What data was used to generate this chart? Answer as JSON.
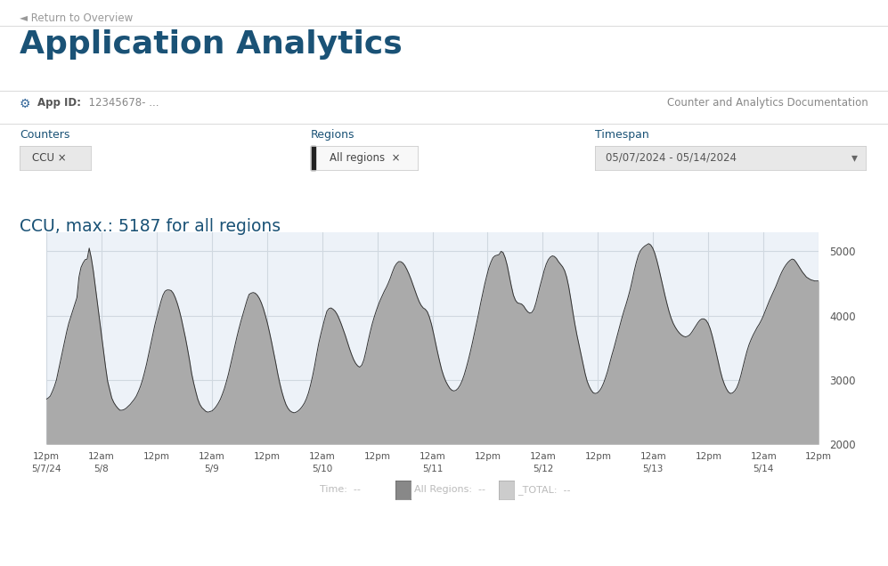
{
  "page_title": "Application Analytics",
  "return_link": "◄ Return to Overview",
  "app_id_label": "App ID:",
  "app_id_value": "  12345678- ...",
  "doc_link": "Counter and Analytics Documentation",
  "counters_label": "Counters",
  "regions_label": "Regions",
  "timespan_label": "Timespan",
  "counter_tag": "CCU ×",
  "region_tag": "All regions  ×",
  "timespan_value": "05/07/2024 - 05/14/2024",
  "chart_title": "CCU, max.: 5187 for all regions",
  "title_color": "#1a5276",
  "page_bg": "#ffffff",
  "chart_bg": "#edf2f8",
  "fill_color": "#aaaaaa",
  "fill_edge_color": "#888888",
  "grid_color": "#d0d8e0",
  "ylim": [
    2000,
    5300
  ],
  "yticks": [
    2000,
    3000,
    4000,
    5000
  ],
  "x_tick_labels": [
    "12pm\n5/7/24",
    "12am\n5/8",
    "12pm",
    "12am\n5/9",
    "12pm",
    "12am\n5/10",
    "12pm",
    "12am\n5/11",
    "12pm",
    "12am\n5/12",
    "12pm",
    "12am\n5/13",
    "12pm",
    "12am\n5/14",
    "12pm"
  ],
  "y_series": [
    2700,
    2720,
    2750,
    2820,
    2900,
    3000,
    3150,
    3300,
    3450,
    3600,
    3750,
    3880,
    3980,
    4080,
    4180,
    4280,
    4600,
    4750,
    4820,
    4870,
    4880,
    5050,
    4900,
    4700,
    4450,
    4200,
    3950,
    3700,
    3450,
    3200,
    2980,
    2850,
    2720,
    2650,
    2600,
    2560,
    2530,
    2530,
    2540,
    2560,
    2590,
    2620,
    2660,
    2700,
    2750,
    2820,
    2900,
    3000,
    3120,
    3250,
    3400,
    3550,
    3700,
    3850,
    3980,
    4100,
    4220,
    4320,
    4380,
    4400,
    4400,
    4390,
    4350,
    4280,
    4190,
    4080,
    3950,
    3800,
    3650,
    3480,
    3300,
    3100,
    2950,
    2820,
    2700,
    2620,
    2570,
    2540,
    2510,
    2500,
    2510,
    2520,
    2550,
    2590,
    2640,
    2700,
    2780,
    2870,
    2980,
    3100,
    3240,
    3380,
    3520,
    3660,
    3790,
    3910,
    4020,
    4130,
    4240,
    4330,
    4350,
    4360,
    4350,
    4320,
    4270,
    4200,
    4110,
    4000,
    3880,
    3740,
    3590,
    3430,
    3270,
    3100,
    2950,
    2820,
    2710,
    2620,
    2560,
    2520,
    2500,
    2490,
    2500,
    2520,
    2550,
    2590,
    2640,
    2710,
    2800,
    2920,
    3060,
    3220,
    3400,
    3570,
    3710,
    3840,
    3960,
    4070,
    4110,
    4120,
    4100,
    4070,
    4020,
    3950,
    3870,
    3780,
    3690,
    3590,
    3490,
    3400,
    3320,
    3260,
    3220,
    3200,
    3230,
    3310,
    3440,
    3590,
    3730,
    3860,
    3970,
    4070,
    4160,
    4240,
    4310,
    4380,
    4440,
    4510,
    4590,
    4680,
    4760,
    4810,
    4840,
    4840,
    4820,
    4780,
    4720,
    4650,
    4570,
    4480,
    4390,
    4300,
    4220,
    4160,
    4120,
    4100,
    4060,
    3980,
    3870,
    3730,
    3580,
    3430,
    3290,
    3160,
    3060,
    2980,
    2920,
    2870,
    2840,
    2830,
    2840,
    2870,
    2920,
    2990,
    3080,
    3190,
    3310,
    3440,
    3580,
    3730,
    3880,
    4030,
    4190,
    4340,
    4490,
    4620,
    4740,
    4830,
    4900,
    4930,
    4940,
    4950,
    5000,
    4980,
    4900,
    4780,
    4620,
    4460,
    4320,
    4240,
    4200,
    4190,
    4180,
    4150,
    4100,
    4060,
    4040,
    4050,
    4100,
    4200,
    4330,
    4460,
    4580,
    4700,
    4800,
    4870,
    4910,
    4930,
    4920,
    4890,
    4840,
    4800,
    4760,
    4700,
    4600,
    4450,
    4260,
    4060,
    3870,
    3700,
    3550,
    3400,
    3250,
    3100,
    2980,
    2900,
    2840,
    2800,
    2790,
    2800,
    2830,
    2880,
    2950,
    3040,
    3140,
    3260,
    3380,
    3490,
    3610,
    3730,
    3850,
    3970,
    4080,
    4180,
    4290,
    4410,
    4550,
    4700,
    4830,
    4940,
    5010,
    5050,
    5080,
    5100,
    5120,
    5100,
    5050,
    4970,
    4860,
    4730,
    4590,
    4450,
    4310,
    4180,
    4060,
    3960,
    3880,
    3820,
    3770,
    3730,
    3700,
    3680,
    3670,
    3680,
    3700,
    3740,
    3790,
    3840,
    3890,
    3930,
    3950,
    3950,
    3930,
    3880,
    3800,
    3690,
    3560,
    3420,
    3280,
    3140,
    3020,
    2930,
    2860,
    2810,
    2790,
    2800,
    2830,
    2880,
    2960,
    3070,
    3200,
    3330,
    3450,
    3550,
    3630,
    3700,
    3760,
    3820,
    3870,
    3930,
    4000,
    4080,
    4160,
    4240,
    4310,
    4380,
    4450,
    4530,
    4610,
    4680,
    4740,
    4790,
    4830,
    4860,
    4880,
    4870,
    4830,
    4780,
    4730,
    4680,
    4640,
    4600,
    4580,
    4560,
    4550,
    4540,
    4540,
    4540
  ]
}
